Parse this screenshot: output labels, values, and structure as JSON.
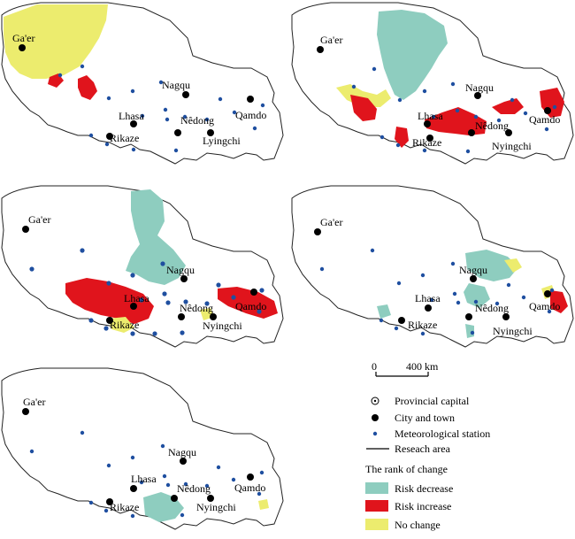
{
  "places": {
    "gaer": "Ga'er",
    "nagqu": "Nagqu",
    "lhasa": "Lhasa",
    "nedong": "Nêdong",
    "qamdo": "Qamdo",
    "rikaze": "Rikaze",
    "lyingchi": "Lyingchi",
    "nyingchi": "Nyingchi"
  },
  "scalebar": {
    "start": "0",
    "end": "400 km"
  },
  "legend": {
    "provincial_capital": "Provincial capital",
    "city_town": "City and town",
    "met_station": "Meteorological station",
    "research_area": "Reseach area",
    "rank_title": "The rank of change",
    "risk_decrease": "Risk decrease",
    "risk_increase": "Risk increase",
    "no_change": "No change"
  },
  "colors": {
    "risk_decrease": "#8ecdbf",
    "risk_increase": "#e0141c",
    "no_change": "#ecec6e",
    "station": "#1f4fa0"
  }
}
